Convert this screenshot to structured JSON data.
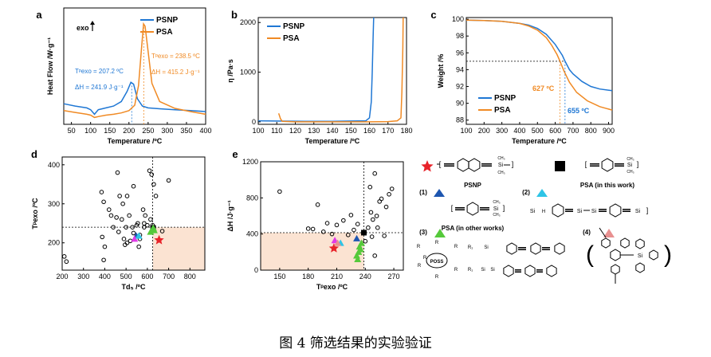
{
  "caption": "图 4 筛选结果的实验验证",
  "colors": {
    "psnp": "#1f77d4",
    "psa": "#f08a24",
    "shade": "#fbe3d2",
    "red": "#e8232a",
    "navy": "#1e56b0",
    "cyan": "#2ec4e6",
    "green": "#55c93b",
    "magenta": "#e238e8",
    "salmon": "#e89090"
  },
  "chart_data": [
    {
      "panel": "a",
      "type": "line",
      "xlabel": "Temperature /ºC",
      "ylabel": "Heat Flow /W·g⁻¹",
      "xlim": [
        30,
        400
      ],
      "xticks": [
        50,
        100,
        150,
        200,
        250,
        300,
        350,
        400
      ],
      "exo_label": "exo",
      "series": [
        {
          "name": "PSNP",
          "x": [
            30,
            60,
            90,
            100,
            110,
            120,
            140,
            160,
            180,
            195,
            205,
            212,
            222,
            235,
            250,
            280,
            320,
            360,
            400
          ],
          "y": [
            0.35,
            0.3,
            0.26,
            0.22,
            0.12,
            0.22,
            0.26,
            0.3,
            0.4,
            0.62,
            0.82,
            0.78,
            0.46,
            0.3,
            0.26,
            0.24,
            0.22,
            0.2,
            0.18
          ]
        },
        {
          "name": "PSA",
          "x": [
            30,
            60,
            90,
            100,
            110,
            120,
            140,
            160,
            180,
            200,
            215,
            225,
            233,
            238,
            242,
            250,
            260,
            280,
            320,
            360,
            400
          ],
          "y": [
            0.2,
            0.16,
            0.12,
            0.1,
            0.05,
            0.07,
            0.1,
            0.12,
            0.15,
            0.2,
            0.32,
            0.75,
            1.6,
            2.1,
            2.05,
            1.5,
            0.8,
            0.4,
            0.25,
            0.18,
            0.12
          ]
        }
      ],
      "annotations": {
        "psnp_tp": "Tᵖexo = 207.2 ºC",
        "psnp_dh": "ΔH = 241.9 J·g⁻¹",
        "psa_tp": "Tᵖexo = 238.5 ºC",
        "psa_dh": "ΔH = 415.2 J·g⁻¹"
      },
      "vlines": [
        207.2,
        238.5
      ]
    },
    {
      "panel": "b",
      "type": "line",
      "xlabel": "Temperature /ºC",
      "ylabel": "η /Pa·s",
      "xlim": [
        100,
        180
      ],
      "ylim": [
        -50,
        2100
      ],
      "xticks": [
        100,
        110,
        120,
        130,
        140,
        150,
        160,
        170,
        180
      ],
      "yticks": [
        0,
        1000,
        2000
      ],
      "series": [
        {
          "name": "PSNP",
          "x": [
            100,
            110,
            120,
            130,
            140,
            150,
            158,
            160,
            161,
            161.5,
            162,
            162.3
          ],
          "y": [
            20,
            15,
            12,
            10,
            10,
            15,
            20,
            80,
            400,
            1000,
            1700,
            2100
          ]
        },
        {
          "name": "PSA",
          "x": [
            111,
            111.5,
            112,
            113,
            120,
            130,
            140,
            150,
            160,
            170,
            175,
            177,
            177.5,
            178,
            178.2
          ],
          "y": [
            170,
            120,
            60,
            10,
            0,
            0,
            0,
            0,
            0,
            5,
            20,
            80,
            600,
            1500,
            2100
          ]
        }
      ]
    },
    {
      "panel": "c",
      "type": "line",
      "xlabel": "Temperature /ºC",
      "ylabel": "Weight /%",
      "xlim": [
        100,
        920
      ],
      "ylim": [
        87.5,
        100.2
      ],
      "xticks": [
        100,
        200,
        300,
        400,
        500,
        600,
        700,
        800,
        900
      ],
      "yticks": [
        88,
        90,
        92,
        94,
        96,
        98,
        100
      ],
      "hline": 95,
      "series": [
        {
          "name": "PSNP",
          "x": [
            100,
            200,
            300,
            400,
            450,
            500,
            550,
            600,
            640,
            655,
            680,
            700,
            750,
            800,
            850,
            920
          ],
          "y": [
            99.9,
            99.85,
            99.75,
            99.5,
            99.3,
            98.9,
            98.2,
            97.0,
            95.7,
            95.0,
            94.0,
            93.5,
            92.6,
            92.0,
            91.7,
            91.5
          ]
        },
        {
          "name": "PSA",
          "x": [
            100,
            200,
            300,
            400,
            450,
            500,
            550,
            580,
            610,
            627,
            650,
            680,
            720,
            780,
            850,
            920
          ],
          "y": [
            99.9,
            99.85,
            99.75,
            99.5,
            99.2,
            98.7,
            97.8,
            96.9,
            95.8,
            95.0,
            93.8,
            92.5,
            91.3,
            90.3,
            89.6,
            89.2
          ]
        }
      ],
      "labels": {
        "psa_temp": "627 ºC",
        "psnp_temp": "655 ºC"
      },
      "vlines": [
        627,
        655
      ]
    },
    {
      "panel": "d",
      "type": "scatter",
      "xlabel": "Td₅ /ºC",
      "ylabel": "Tᵖexo /ºC",
      "xlim": [
        200,
        870
      ],
      "ylim": [
        130,
        420
      ],
      "xticks": [
        200,
        300,
        400,
        500,
        600,
        700,
        800
      ],
      "yticks": [
        200,
        300,
        400
      ],
      "threshold_x": 625,
      "threshold_y": 240,
      "circles": [
        [
          210,
          165
        ],
        [
          220,
          152
        ],
        [
          385,
          330
        ],
        [
          388,
          215
        ],
        [
          395,
          305
        ],
        [
          395,
          156
        ],
        [
          400,
          190
        ],
        [
          420,
          285
        ],
        [
          430,
          270
        ],
        [
          440,
          240
        ],
        [
          455,
          265
        ],
        [
          460,
          380
        ],
        [
          465,
          228
        ],
        [
          470,
          320
        ],
        [
          480,
          260
        ],
        [
          485,
          300
        ],
        [
          490,
          210
        ],
        [
          495,
          195
        ],
        [
          500,
          240
        ],
        [
          505,
          320
        ],
        [
          505,
          200
        ],
        [
          515,
          270
        ],
        [
          520,
          205
        ],
        [
          530,
          240
        ],
        [
          535,
          225
        ],
        [
          535,
          345
        ],
        [
          550,
          245
        ],
        [
          555,
          250
        ],
        [
          560,
          190
        ],
        [
          565,
          220
        ],
        [
          565,
          210
        ],
        [
          580,
          285
        ],
        [
          585,
          240
        ],
        [
          585,
          250
        ],
        [
          590,
          270
        ],
        [
          600,
          245
        ],
        [
          610,
          385
        ],
        [
          615,
          260
        ],
        [
          620,
          375
        ],
        [
          625,
          245
        ],
        [
          630,
          350
        ],
        [
          640,
          320
        ],
        [
          670,
          230
        ],
        [
          700,
          360
        ]
      ],
      "markers": [
        {
          "type": "star",
          "color": "red",
          "x": 655,
          "y": 207
        },
        {
          "type": "square",
          "color": "black",
          "x": 627,
          "y": 238
        },
        {
          "type": "tri",
          "color": "navy",
          "x": 548,
          "y": 218
        },
        {
          "type": "tri",
          "color": "magenta",
          "x": 540,
          "y": 210
        },
        {
          "type": "tri",
          "color": "cyan",
          "x": 560,
          "y": 218
        },
        {
          "type": "tri",
          "color": "green",
          "x": 615,
          "y": 228
        },
        {
          "type": "tri",
          "color": "green",
          "x": 625,
          "y": 236
        },
        {
          "type": "tri",
          "color": "green",
          "x": 628,
          "y": 238
        },
        {
          "type": "tri",
          "color": "green",
          "x": 632,
          "y": 232
        }
      ]
    },
    {
      "panel": "e",
      "type": "scatter",
      "xlabel": "Tᵖexo /ºC",
      "ylabel": "ΔH /J·g⁻¹",
      "xlim": [
        130,
        280
      ],
      "ylim": [
        0,
        1200
      ],
      "xticks": [
        150,
        180,
        210,
        240,
        270
      ],
      "yticks": [
        0,
        400,
        800,
        1200
      ],
      "threshold_x": 238.5,
      "threshold_y": 415,
      "circles": [
        [
          150,
          870
        ],
        [
          180,
          460
        ],
        [
          185,
          455
        ],
        [
          190,
          725
        ],
        [
          196,
          425
        ],
        [
          200,
          520
        ],
        [
          205,
          400
        ],
        [
          210,
          500
        ],
        [
          217,
          550
        ],
        [
          222,
          390
        ],
        [
          225,
          610
        ],
        [
          228,
          445
        ],
        [
          232,
          510
        ],
        [
          240,
          320
        ],
        [
          243,
          470
        ],
        [
          245,
          920
        ],
        [
          247,
          370
        ],
        [
          250,
          160
        ],
        [
          250,
          1070
        ],
        [
          252,
          600
        ],
        [
          255,
          760
        ],
        [
          257,
          790
        ],
        [
          260,
          380
        ],
        [
          262,
          700
        ],
        [
          265,
          840
        ],
        [
          268,
          900
        ],
        [
          253,
          470
        ],
        [
          248,
          560
        ],
        [
          246,
          640
        ]
      ],
      "markers": [
        {
          "type": "star",
          "color": "red",
          "x": 207,
          "y": 242
        },
        {
          "type": "square",
          "color": "black",
          "x": 238.5,
          "y": 415
        },
        {
          "type": "tri",
          "color": "navy",
          "x": 231,
          "y": 350
        },
        {
          "type": "tri",
          "color": "magenta",
          "x": 208,
          "y": 330
        },
        {
          "type": "tri",
          "color": "cyan",
          "x": 214,
          "y": 300
        },
        {
          "type": "tri",
          "color": "salmon",
          "x": 211,
          "y": 300
        },
        {
          "type": "tri",
          "color": "green",
          "x": 231,
          "y": 160
        },
        {
          "type": "tri",
          "color": "green",
          "x": 233,
          "y": 200
        },
        {
          "type": "tri",
          "color": "green",
          "x": 234,
          "y": 260
        },
        {
          "type": "tri",
          "color": "green",
          "x": 236,
          "y": 300
        },
        {
          "type": "tri",
          "color": "green",
          "x": 235,
          "y": 230
        },
        {
          "type": "tri",
          "color": "green",
          "x": 232,
          "y": 120
        }
      ]
    }
  ],
  "legend_panel": {
    "psnp_label": "PSNP",
    "psa_label": "PSA (in this work)",
    "other_label": "PSA (in other works)",
    "group1": "(1)",
    "group2": "(2)",
    "group3": "(3)",
    "group4": "(4)",
    "poss": "POSS",
    "r_labels": [
      "R",
      "R",
      "R",
      "R",
      "R",
      "R",
      "R"
    ],
    "r1": "R₁",
    "si": "Si",
    "h": "H",
    "ch3": "CH₃"
  }
}
